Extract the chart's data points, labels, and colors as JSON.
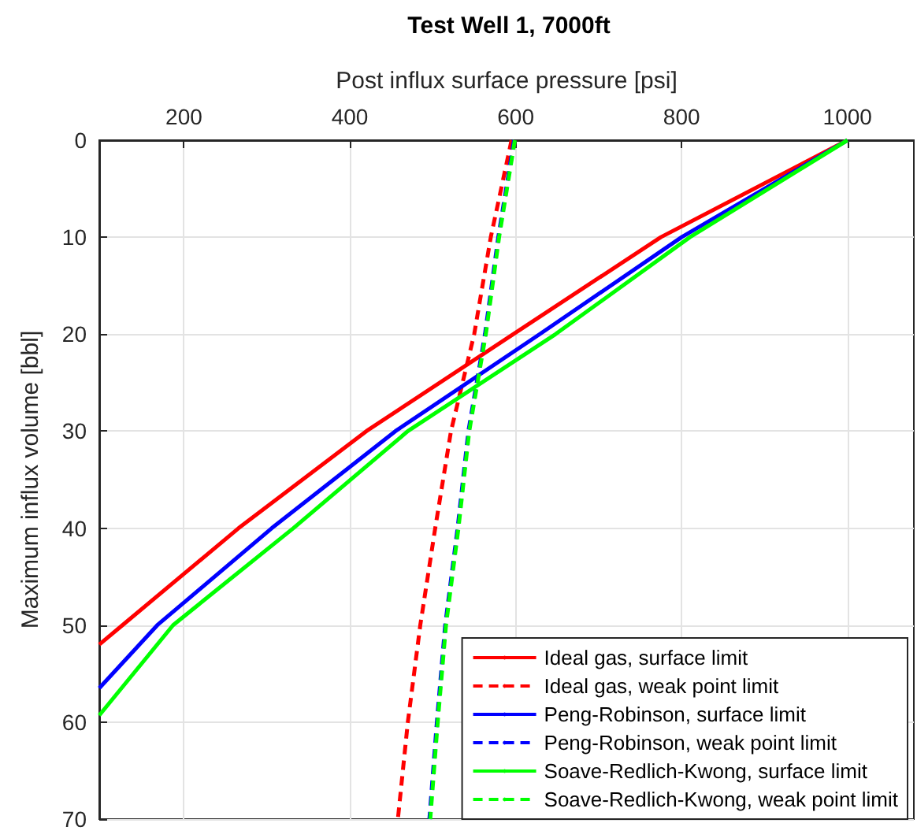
{
  "chart_data": {
    "type": "line",
    "title": "Test Well 1, 7000ft",
    "xlabel": "Post influx surface pressure [psi]",
    "ylabel": "Maximum influx volume [bbl]",
    "xlim": [
      98,
      1080
    ],
    "xticks": [
      200,
      400,
      600,
      800,
      1000
    ],
    "ylim": [
      70,
      0
    ],
    "yticks": [
      0,
      10,
      20,
      30,
      40,
      50,
      60,
      70
    ],
    "grid": true,
    "legend": "bottom right",
    "marker": "none",
    "series": [
      {
        "name": "Ideal gas, surface limit",
        "color": "#ff0000",
        "line_style": "solid",
        "x": [
          1000,
          775,
          597,
          420,
          266,
          126,
          98
        ],
        "values": [
          0,
          10,
          20,
          30,
          40,
          50,
          52
        ]
      },
      {
        "name": "Ideal gas, weak point limit",
        "color": "#ff0000",
        "line_style": "dashed",
        "x": [
          595,
          570,
          550,
          522,
          503,
          485,
          470,
          458
        ],
        "values": [
          0,
          10,
          20,
          30,
          40,
          50,
          60,
          70
        ]
      },
      {
        "name": "Peng-Robinson, surface limit",
        "color": "#0000ff",
        "line_style": "solid",
        "x": [
          1000,
          800,
          629,
          455,
          306,
          168,
          98
        ],
        "values": [
          0,
          10,
          20,
          30,
          40,
          50,
          56.5
        ]
      },
      {
        "name": "Peng-Robinson, weak point limit",
        "color": "#0000ff",
        "line_style": "dashed",
        "x": [
          598,
          579,
          563,
          543,
          530,
          515,
          505,
          496
        ],
        "values": [
          0,
          10,
          20,
          30,
          40,
          50,
          60,
          70
        ]
      },
      {
        "name": "Soave-Redlich-Kwong, surface limit",
        "color": "#00ff00",
        "line_style": "solid",
        "x": [
          1000,
          810,
          648,
          470,
          332,
          187,
          98
        ],
        "values": [
          0,
          10,
          20,
          30,
          40,
          50,
          59.3
        ]
      },
      {
        "name": "Soave-Redlich-Kwong, weak point limit",
        "color": "#00ff00",
        "line_style": "dashed",
        "x": [
          599,
          580,
          564,
          544,
          531,
          516,
          506,
          497
        ],
        "values": [
          0,
          10,
          20,
          30,
          40,
          50,
          60,
          70
        ]
      }
    ]
  }
}
